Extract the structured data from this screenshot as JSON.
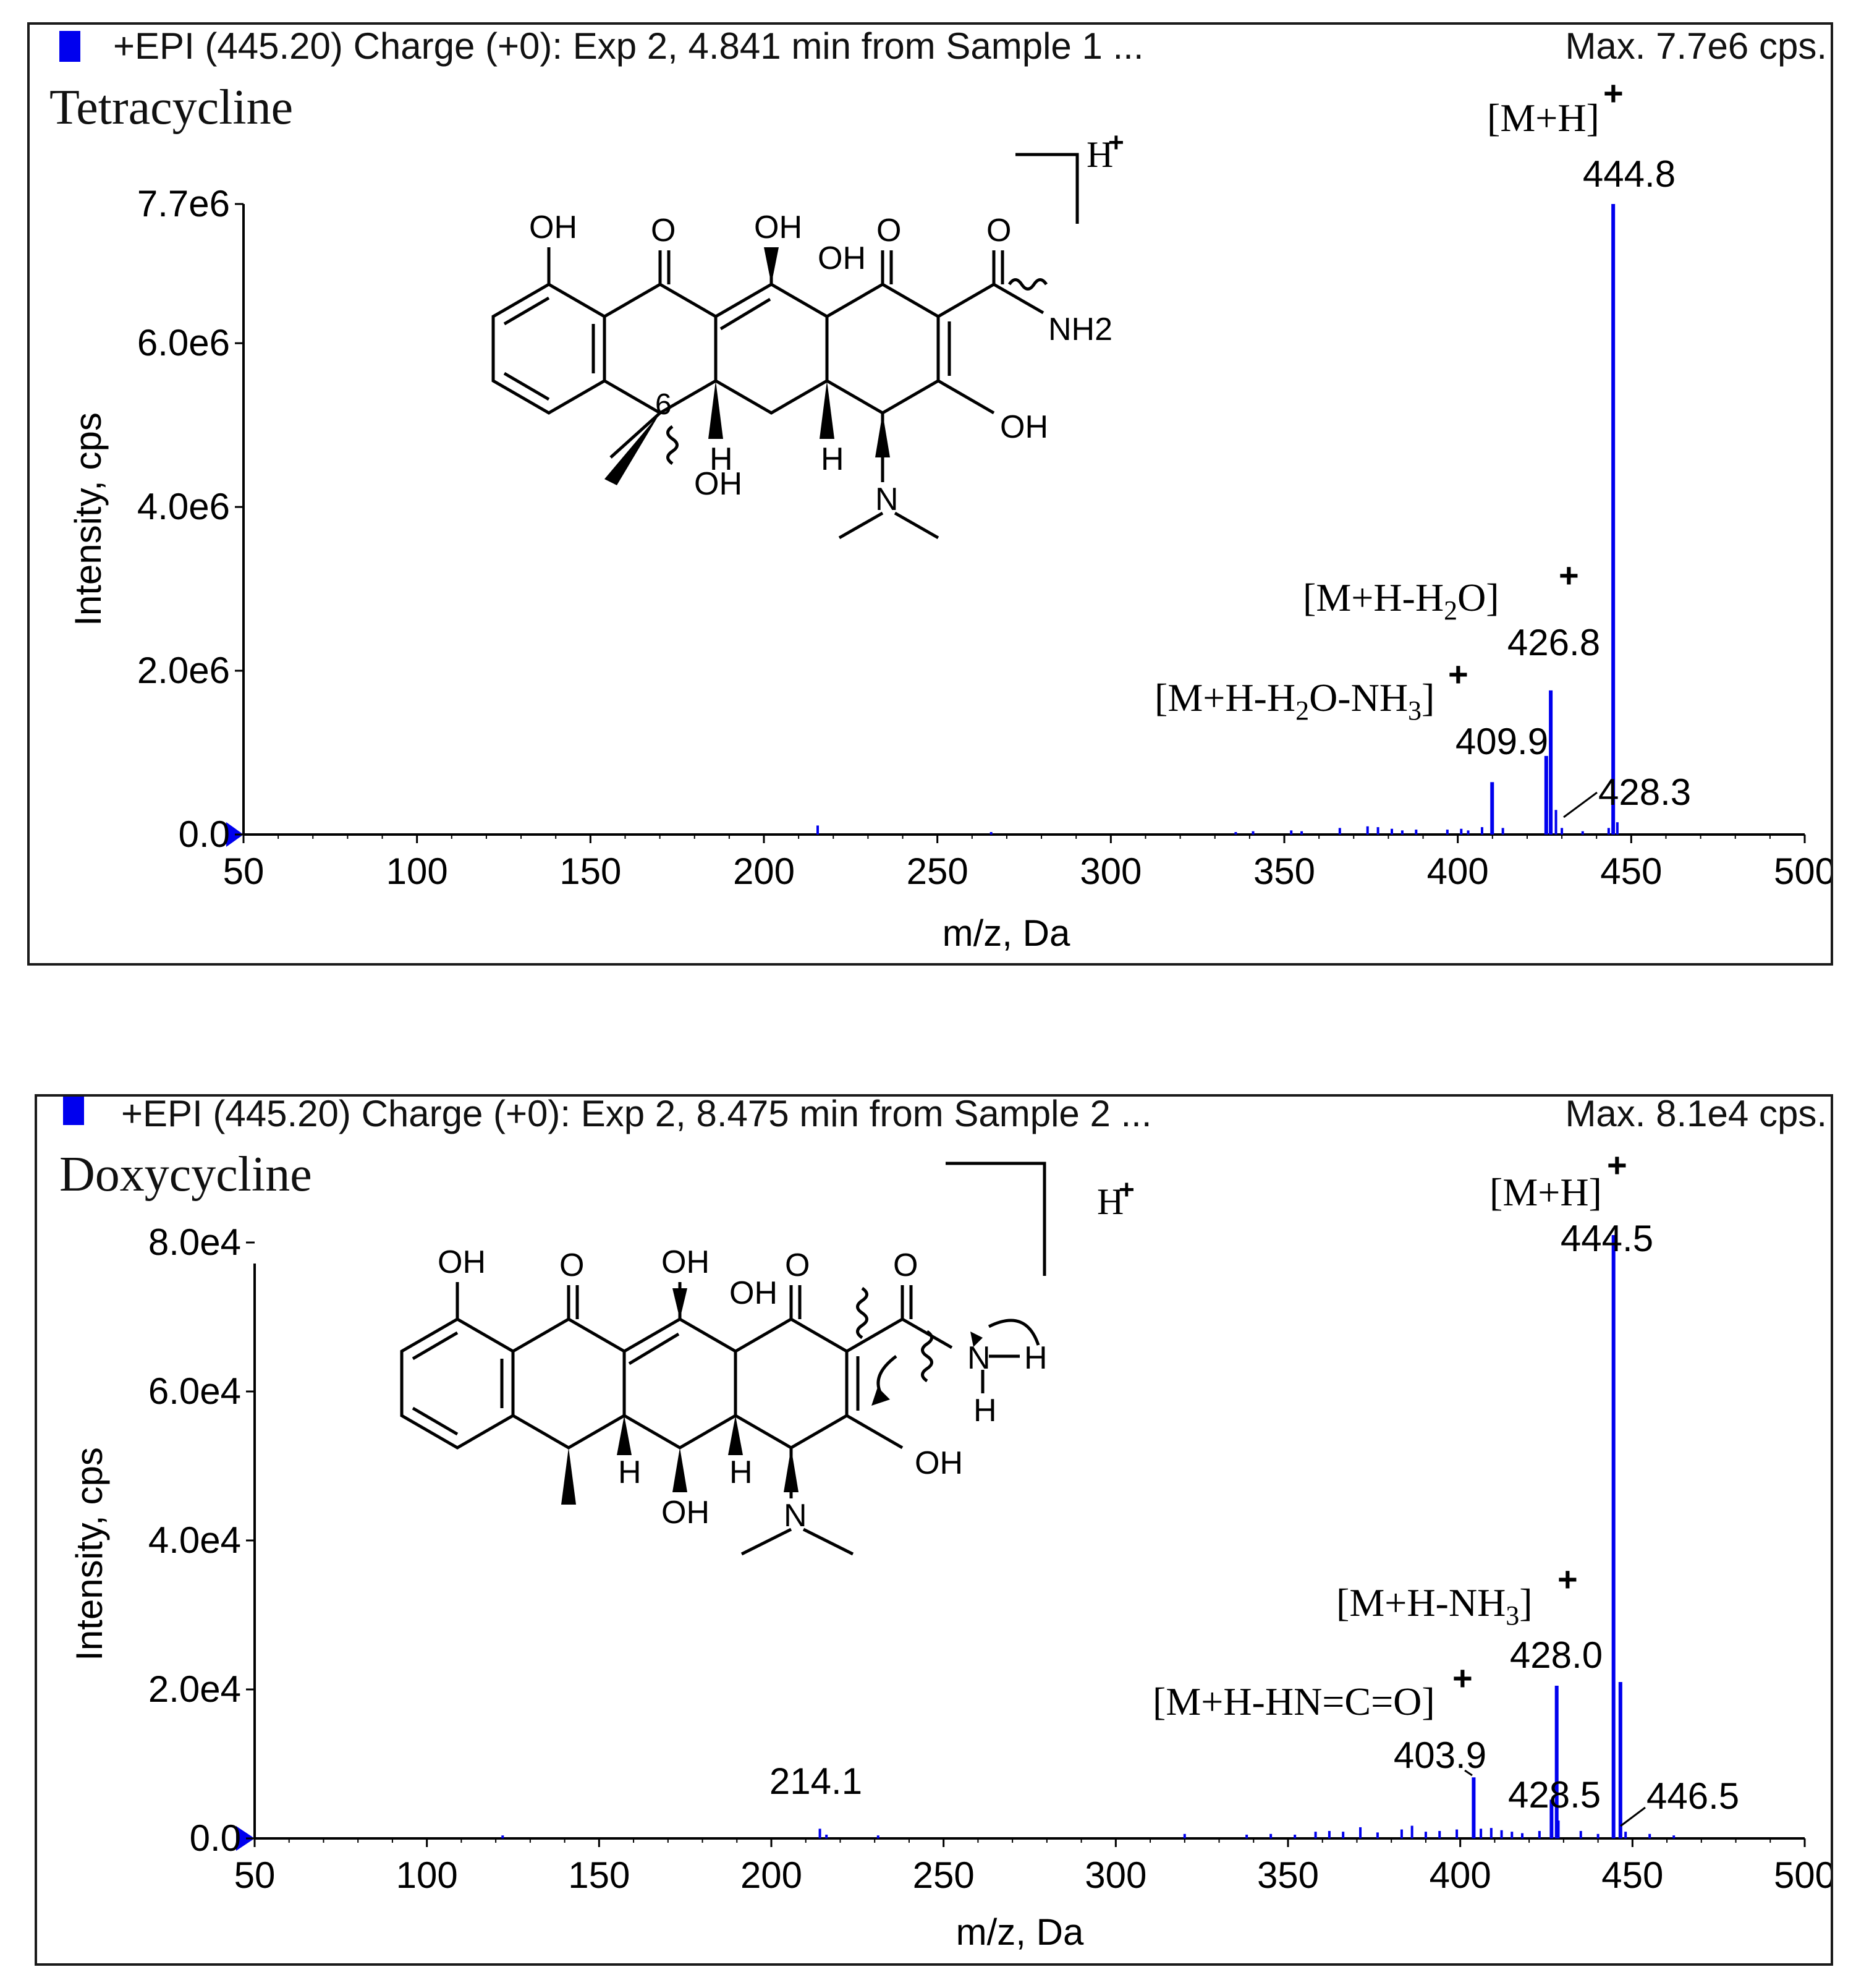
{
  "colors": {
    "spectrum": "#0000ee",
    "axis": "#000000",
    "text": "#111111"
  },
  "panels": [
    {
      "header_text": "+EPI (445.20) Charge (+0): Exp 2, 4.841 min from Sample 1 ...",
      "max_text": "Max. 7.7e6 cps.",
      "compound": "Tetracycline",
      "proton_label": "H",
      "charge_symbol": "+",
      "structure_labels": [
        "OH",
        "O",
        "OH",
        "OH",
        "O",
        "O",
        "NH2",
        "OH",
        "6",
        "H",
        "OH",
        "H",
        "N"
      ],
      "chart_data": {
        "type": "bar",
        "xlabel": "m/z, Da",
        "ylabel": "Intensity, cps",
        "xlim": [
          50,
          500
        ],
        "ylim": [
          0,
          7700000
        ],
        "xticks": [
          50,
          100,
          150,
          200,
          250,
          300,
          350,
          400,
          450,
          500
        ],
        "yticks": [
          0,
          2000000,
          4000000,
          6000000,
          7700000
        ],
        "ytick_labels": [
          "0.0",
          "2.0e6",
          "4.0e6",
          "6.0e6",
          "7.7e6"
        ],
        "peaks": [
          {
            "x": 215.5,
            "y": 110000
          },
          {
            "x": 265.5,
            "y": 30000
          },
          {
            "x": 336,
            "y": 30000
          },
          {
            "x": 341,
            "y": 40000
          },
          {
            "x": 352,
            "y": 50000
          },
          {
            "x": 355,
            "y": 40000
          },
          {
            "x": 366,
            "y": 80000
          },
          {
            "x": 374,
            "y": 100000
          },
          {
            "x": 377,
            "y": 90000
          },
          {
            "x": 381,
            "y": 70000
          },
          {
            "x": 384,
            "y": 50000
          },
          {
            "x": 388,
            "y": 60000
          },
          {
            "x": 397,
            "y": 60000
          },
          {
            "x": 401,
            "y": 70000
          },
          {
            "x": 403,
            "y": 50000
          },
          {
            "x": 407,
            "y": 90000
          },
          {
            "x": 409.9,
            "y": 640000
          },
          {
            "x": 413,
            "y": 80000
          },
          {
            "x": 425.5,
            "y": 960000
          },
          {
            "x": 426.8,
            "y": 1760000
          },
          {
            "x": 428.3,
            "y": 300000
          },
          {
            "x": 430,
            "y": 80000
          },
          {
            "x": 436,
            "y": 40000
          },
          {
            "x": 443.5,
            "y": 80000
          },
          {
            "x": 444.8,
            "y": 7700000
          },
          {
            "x": 446,
            "y": 150000
          }
        ]
      },
      "annotations": [
        {
          "text": "444.8"
        },
        {
          "text": "426.8"
        },
        {
          "text": "409.9"
        },
        {
          "text": "428.3"
        }
      ],
      "ion_labels": [
        {
          "text": "[M+H]"
        },
        {
          "pre": "[M+H-H",
          "sub": "2",
          "post": "O]"
        },
        {
          "pre": "[M+H-H",
          "sub": "2",
          "mid": "O-NH",
          "sub2": "3",
          "post": "]"
        }
      ]
    },
    {
      "header_text": "+EPI (445.20) Charge (+0): Exp 2, 8.475 min from Sample 2 ...",
      "max_text": "Max. 8.1e4 cps.",
      "compound": "Doxycycline",
      "proton_label": "H",
      "charge_symbol": "+",
      "structure_labels": [
        "OH",
        "O",
        "OH",
        "OH",
        "O",
        "O",
        "N",
        "H",
        "H",
        "OH",
        "H",
        "OH",
        "H",
        "N"
      ],
      "chart_data": {
        "type": "bar",
        "xlabel": "m/z, Da",
        "ylabel": "Intensity, cps",
        "xlim": [
          50,
          500
        ],
        "ylim": [
          0,
          80000
        ],
        "xticks": [
          50,
          100,
          150,
          200,
          250,
          300,
          350,
          400,
          450,
          500
        ],
        "yticks": [
          0,
          20000,
          40000,
          60000,
          80000
        ],
        "ytick_labels": [
          "0.0",
          "2.0e4",
          "4.0e4",
          "6.0e4",
          "8.0e4"
        ],
        "peaks": [
          {
            "x": 122,
            "y": 400
          },
          {
            "x": 214.1,
            "y": 1300
          },
          {
            "x": 216,
            "y": 500
          },
          {
            "x": 231,
            "y": 400
          },
          {
            "x": 320,
            "y": 600
          },
          {
            "x": 338,
            "y": 500
          },
          {
            "x": 345,
            "y": 600
          },
          {
            "x": 352,
            "y": 500
          },
          {
            "x": 358,
            "y": 900
          },
          {
            "x": 362,
            "y": 1000
          },
          {
            "x": 366,
            "y": 900
          },
          {
            "x": 371,
            "y": 1500
          },
          {
            "x": 376,
            "y": 800
          },
          {
            "x": 383,
            "y": 1200
          },
          {
            "x": 386,
            "y": 1700
          },
          {
            "x": 390,
            "y": 900
          },
          {
            "x": 394,
            "y": 1000
          },
          {
            "x": 399,
            "y": 1200
          },
          {
            "x": 403.9,
            "y": 8200
          },
          {
            "x": 406,
            "y": 1300
          },
          {
            "x": 409,
            "y": 1400
          },
          {
            "x": 412,
            "y": 1100
          },
          {
            "x": 415,
            "y": 900
          },
          {
            "x": 418,
            "y": 700
          },
          {
            "x": 423,
            "y": 1000
          },
          {
            "x": 426.5,
            "y": 5200
          },
          {
            "x": 428.0,
            "y": 20500
          },
          {
            "x": 428.5,
            "y": 2400
          },
          {
            "x": 435,
            "y": 1000
          },
          {
            "x": 440,
            "y": 600
          },
          {
            "x": 444.5,
            "y": 81000
          },
          {
            "x": 446.5,
            "y": 21000
          },
          {
            "x": 448,
            "y": 900
          },
          {
            "x": 455,
            "y": 600
          },
          {
            "x": 462,
            "y": 400
          }
        ]
      },
      "annotations": [
        {
          "text": "444.5"
        },
        {
          "text": "428.0"
        },
        {
          "text": "403.9"
        },
        {
          "text": "428.5"
        },
        {
          "text": "446.5"
        },
        {
          "text": "214.1"
        }
      ],
      "ion_labels": [
        {
          "text": "[M+H]"
        },
        {
          "pre": "[M+H-NH",
          "sub": "3",
          "post": "]"
        },
        {
          "text": "[M+H-HN=C=O]"
        }
      ]
    }
  ]
}
